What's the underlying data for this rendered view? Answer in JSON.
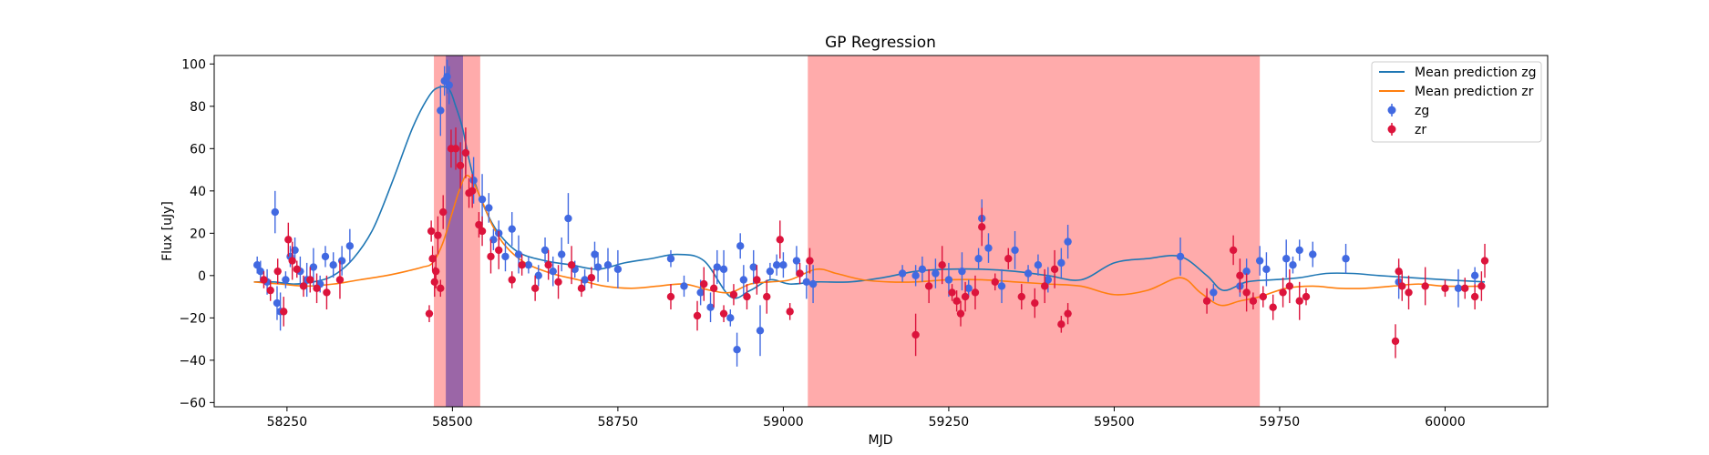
{
  "chart_data": {
    "type": "scatter",
    "title": "GP Regression",
    "xlabel": "MJD",
    "ylabel": "Flux [uJy]",
    "xlim": [
      58140,
      60155
    ],
    "ylim": [
      -62,
      104
    ],
    "xticks": [
      58250,
      58500,
      58750,
      59000,
      59250,
      59500,
      59750,
      60000
    ],
    "xtick_labels": [
      "58250",
      "58500",
      "58750",
      "59000",
      "59250",
      "59500",
      "59750",
      "60000"
    ],
    "yticks": [
      -60,
      -40,
      -20,
      0,
      20,
      40,
      60,
      80,
      100
    ],
    "ytick_labels": [
      "−60",
      "−40",
      "−20",
      "0",
      "20",
      "40",
      "60",
      "80",
      "100"
    ],
    "legend_position": "top-right",
    "shaded_regions": [
      {
        "x0": 58472,
        "x1": 58542,
        "color": "#ff6666",
        "opacity": 0.55
      },
      {
        "x0": 58490,
        "x1": 58516,
        "color": "#7a4fa6",
        "opacity": 0.75
      },
      {
        "x0": 59037,
        "x1": 59720,
        "color": "#ff6666",
        "opacity": 0.55
      }
    ],
    "lines": [
      {
        "name": "Mean prediction zg",
        "color": "#1f77b4",
        "x": [
          58200,
          58230,
          58260,
          58290,
          58320,
          58350,
          58380,
          58410,
          58440,
          58465,
          58480,
          58495,
          58505,
          58515,
          58525,
          58535,
          58550,
          58570,
          58600,
          58640,
          58680,
          58720,
          58760,
          58800,
          58840,
          58880,
          58920,
          58950,
          58980,
          59010,
          59050,
          59100,
          59150,
          59200,
          59250,
          59300,
          59350,
          59400,
          59450,
          59500,
          59550,
          59600,
          59640,
          59665,
          59700,
          59740,
          59780,
          59820,
          59860,
          59900,
          59950,
          60000,
          60060
        ],
        "y": [
          -3,
          -3,
          -4,
          -3,
          0,
          8,
          22,
          45,
          70,
          85,
          89,
          88,
          80,
          70,
          55,
          43,
          31,
          20,
          11,
          7,
          5,
          3,
          6,
          8,
          10,
          7,
          -10,
          -7,
          -2,
          -4,
          -3,
          -3,
          -1,
          2,
          3,
          3,
          2,
          0,
          -2,
          6,
          8,
          9,
          0,
          -7,
          -3,
          -2,
          -1,
          1,
          1,
          0,
          -1,
          -2,
          -3
        ]
      },
      {
        "name": "Mean prediction zr",
        "color": "#ff7f0e",
        "x": [
          58200,
          58240,
          58280,
          58320,
          58360,
          58400,
          58430,
          58455,
          58470,
          58485,
          58500,
          58510,
          58520,
          58530,
          58545,
          58560,
          58580,
          58610,
          58650,
          58690,
          58730,
          58770,
          58810,
          58850,
          58890,
          58920,
          58950,
          58980,
          59010,
          59050,
          59080,
          59120,
          59160,
          59200,
          59250,
          59300,
          59350,
          59400,
          59450,
          59500,
          59550,
          59600,
          59630,
          59660,
          59690,
          59720,
          59760,
          59800,
          59840,
          59880,
          59920,
          59960,
          60000,
          60060
        ],
        "y": [
          -3,
          -4,
          -5,
          -4,
          -2,
          0,
          2,
          4,
          6,
          15,
          30,
          40,
          47,
          45,
          35,
          24,
          14,
          6,
          1,
          -2,
          -5,
          -6,
          -5,
          -4,
          -7,
          -8,
          -4,
          -3,
          -2,
          3,
          1,
          -2,
          -3,
          -3,
          -2,
          -2,
          -3,
          -4,
          -5,
          -9,
          -7,
          -1,
          -8,
          -14,
          -12,
          -10,
          -6,
          -5,
          -6,
          -6,
          -5,
          -4,
          -5,
          -5
        ]
      }
    ],
    "series": [
      {
        "name": "zg",
        "color": "#4169e1",
        "x": [
          58205,
          58210,
          58220,
          58232,
          58235,
          58240,
          58248,
          58255,
          58262,
          58270,
          58280,
          58290,
          58300,
          58308,
          58320,
          58333,
          58345,
          58482,
          58488,
          58492,
          58495,
          58520,
          58532,
          58545,
          58555,
          58562,
          58570,
          58580,
          58590,
          58600,
          58615,
          58630,
          58640,
          58652,
          58665,
          58675,
          58685,
          58700,
          58715,
          58720,
          58735,
          58750,
          58830,
          58850,
          58875,
          58890,
          58900,
          58910,
          58920,
          58930,
          58935,
          58940,
          58955,
          58965,
          58980,
          58990,
          59000,
          59020,
          59035,
          59045,
          59180,
          59200,
          59210,
          59230,
          59250,
          59270,
          59280,
          59295,
          59300,
          59310,
          59330,
          59350,
          59370,
          59385,
          59400,
          59420,
          59430,
          59600,
          59650,
          59690,
          59700,
          59720,
          59730,
          59760,
          59770,
          59780,
          59800,
          59850,
          59930,
          60020,
          60045
        ],
        "y": [
          5,
          2,
          -3,
          30,
          -13,
          -17,
          -2,
          9,
          12,
          2,
          -2,
          4,
          -4,
          9,
          5,
          7,
          14,
          78,
          92,
          94,
          90,
          58,
          45,
          36,
          32,
          17,
          20,
          9,
          22,
          10,
          5,
          0,
          12,
          2,
          10,
          27,
          3,
          -2,
          10,
          4,
          5,
          3,
          8,
          -5,
          -8,
          -15,
          4,
          3,
          -20,
          -35,
          14,
          -2,
          4,
          -26,
          2,
          5,
          5,
          7,
          -3,
          -4,
          1,
          0,
          3,
          1,
          -2,
          2,
          -6,
          8,
          27,
          13,
          -5,
          12,
          1,
          5,
          -2,
          6,
          16,
          9,
          -8,
          -5,
          2,
          7,
          3,
          8,
          5,
          12,
          10,
          8,
          -3,
          -6,
          0
        ]
      },
      {
        "name": "zr",
        "color": "#dc143c",
        "x": [
          58215,
          58225,
          58236,
          58245,
          58252,
          58258,
          58265,
          58275,
          58285,
          58295,
          58310,
          58330,
          58465,
          58468,
          58470,
          58473,
          58475,
          58478,
          58482,
          58486,
          58498,
          58505,
          58512,
          58520,
          58525,
          58530,
          58540,
          58545,
          58558,
          58570,
          58590,
          58605,
          58625,
          58645,
          58660,
          58680,
          58695,
          58710,
          58830,
          58870,
          58880,
          58895,
          58910,
          58925,
          58945,
          58960,
          58975,
          58995,
          59010,
          59025,
          59040,
          59200,
          59220,
          59240,
          59255,
          59262,
          59268,
          59275,
          59290,
          59300,
          59320,
          59340,
          59360,
          59380,
          59395,
          59410,
          59420,
          59430,
          59640,
          59680,
          59690,
          59700,
          59710,
          59725,
          59740,
          59755,
          59765,
          59780,
          59790,
          59925,
          59930,
          59935,
          59945,
          59970,
          60000,
          60030,
          60045,
          60055,
          60060
        ],
        "y": [
          -2,
          -7,
          2,
          -17,
          17,
          7,
          3,
          -5,
          -2,
          -6,
          -8,
          -2,
          -18,
          21,
          8,
          -3,
          2,
          19,
          -6,
          30,
          60,
          60,
          52,
          58,
          39,
          40,
          24,
          21,
          9,
          12,
          -2,
          5,
          -6,
          5,
          -3,
          5,
          -6,
          -1,
          -10,
          -19,
          -4,
          -6,
          -18,
          -9,
          -10,
          -2,
          -10,
          17,
          -17,
          1,
          7,
          -28,
          -5,
          5,
          -8,
          -12,
          -18,
          -10,
          -8,
          23,
          -3,
          8,
          -10,
          -13,
          -5,
          3,
          -23,
          -18,
          -12,
          12,
          0,
          -8,
          -12,
          -10,
          -15,
          -8,
          -5,
          -12,
          -10,
          -31,
          2,
          -5,
          -8,
          -5,
          -6,
          -6,
          -10,
          -5,
          7
        ]
      }
    ]
  }
}
